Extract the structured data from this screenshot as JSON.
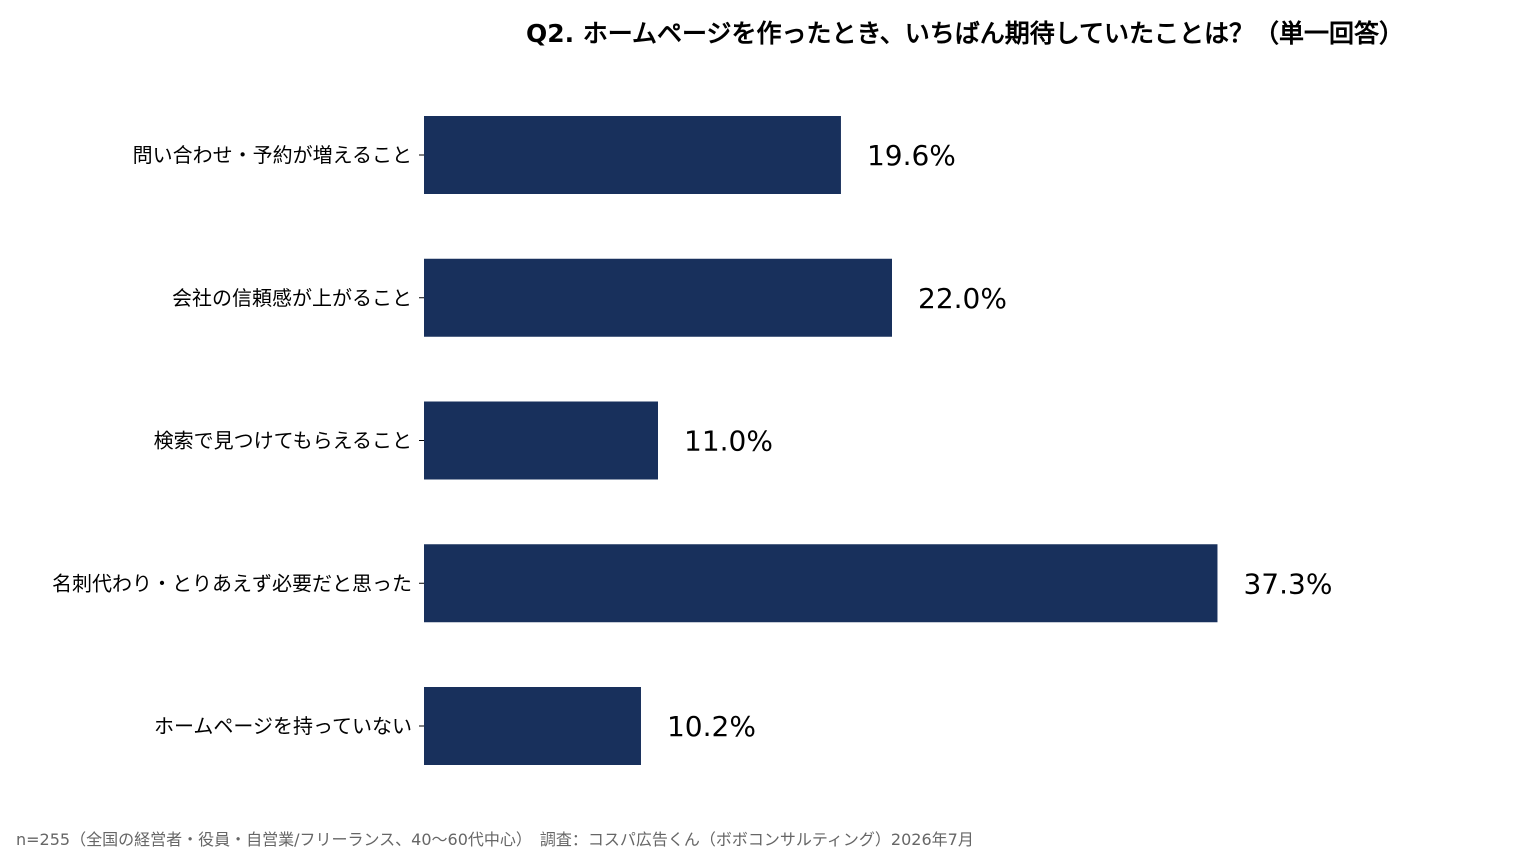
{
  "chart_data": {
    "type": "bar",
    "orientation": "horizontal",
    "title": "Q2. ホームページを作ったとき、いちばん期待していたことは？（単一回答）",
    "categories": [
      "問い合わせ・予約が増えること",
      "会社の信頼感が上がること",
      "検索で見つけてもらえること",
      "名刺代わり・とりあえず必要だと思った",
      "ホームページを持っていない"
    ],
    "values": [
      19.6,
      22.0,
      11.0,
      37.3,
      10.2
    ],
    "value_labels": [
      "19.6%",
      "22.0%",
      "11.0%",
      "37.3%",
      "10.2%"
    ],
    "unit": "%",
    "xlim": [
      0,
      44
    ],
    "bar_color": "#18305c",
    "grid": false,
    "legend": "none"
  },
  "footnote": "n=255（全国の経営者・役員・自営業/フリーランス、40〜60代中心）　調査：コスパ広告くん（ボボコンサルティング）2026年7月"
}
